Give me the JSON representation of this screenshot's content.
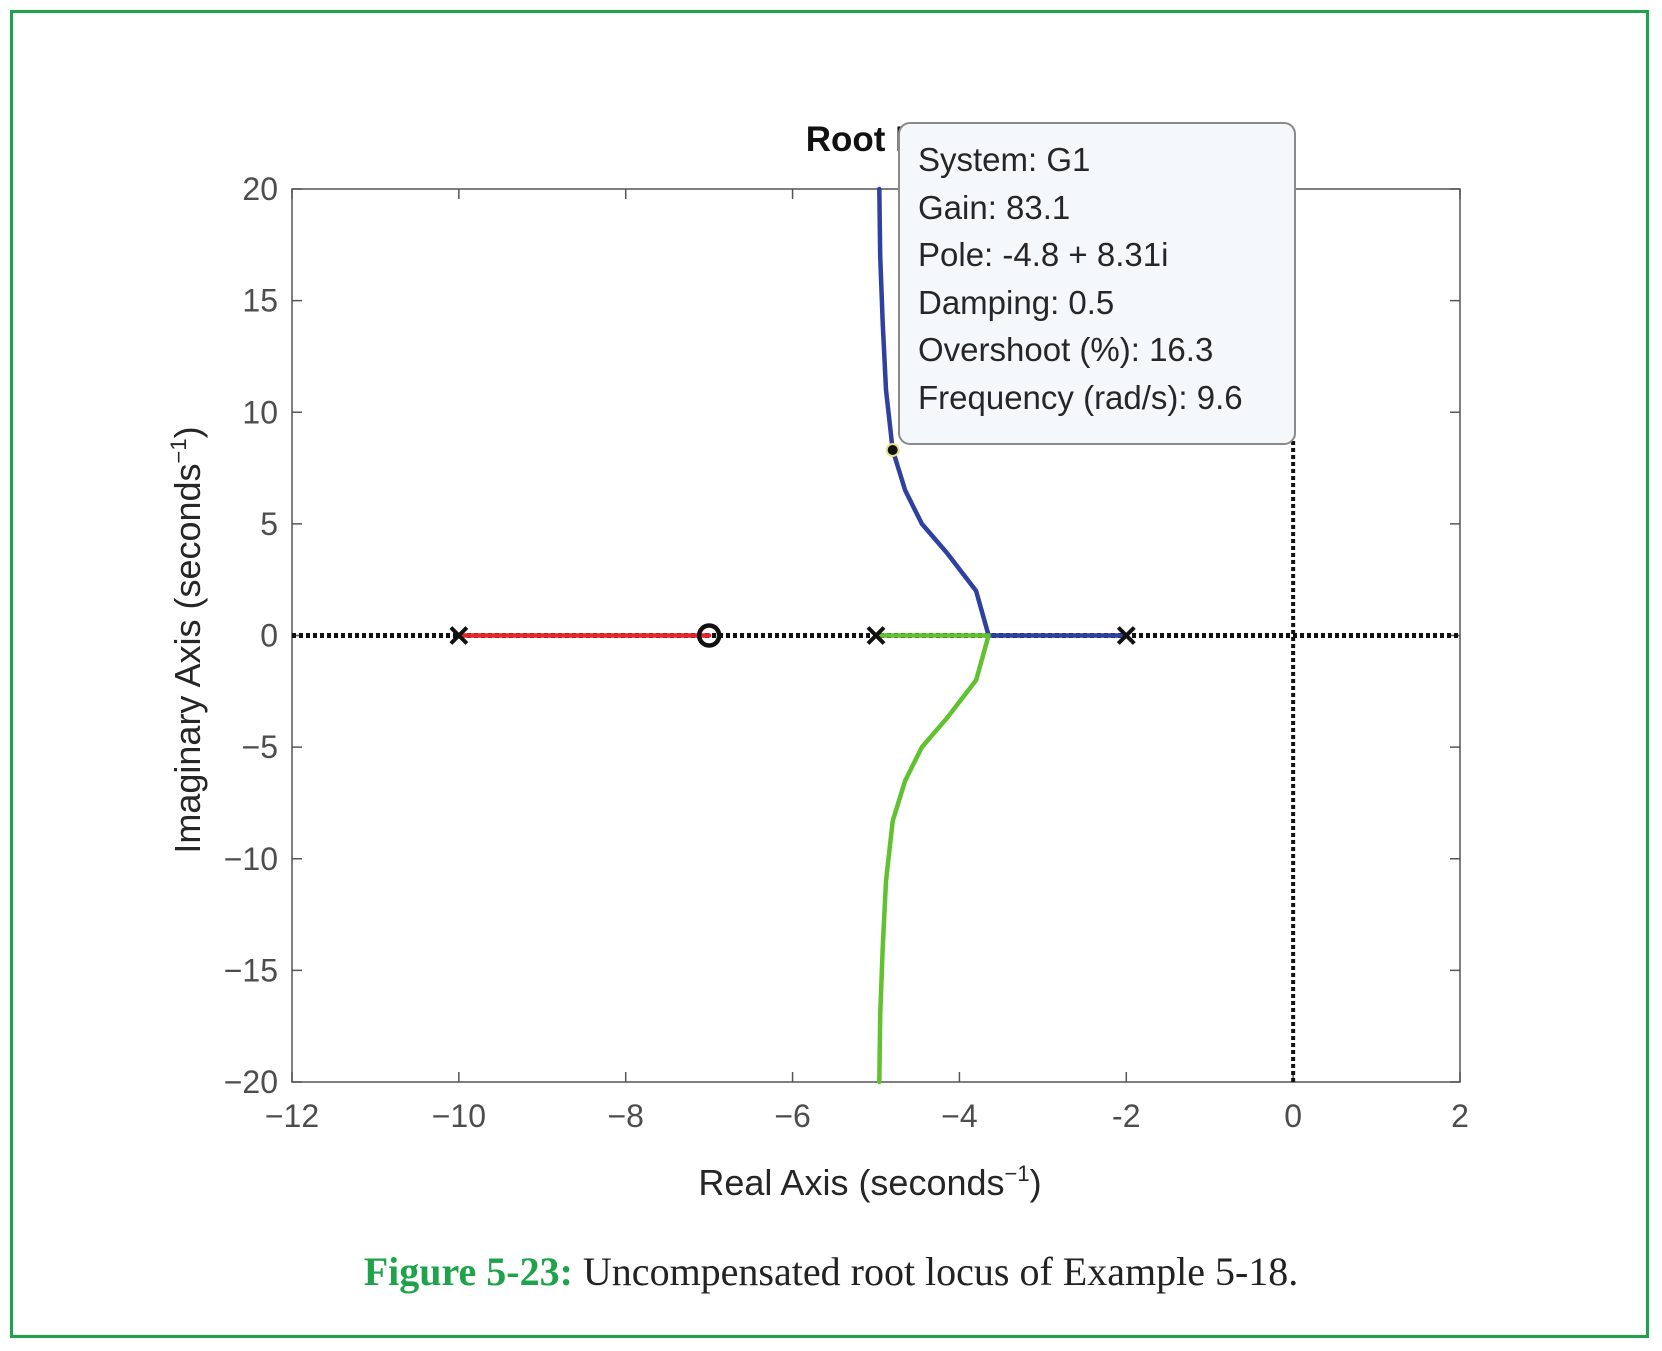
{
  "chart_data": {
    "type": "line",
    "title": "Root Locus",
    "xlabel": "Real Axis (seconds",
    "xlabel_sup": "−1",
    "xlabel_end": ")",
    "ylabel": "Imaginary Axis (seconds",
    "ylabel_sup": "−1",
    "ylabel_end": ")",
    "xlim": [
      -12,
      2
    ],
    "ylim": [
      -20,
      20
    ],
    "xticks": [
      -12,
      -10,
      -8,
      -6,
      -4,
      -2,
      0,
      2
    ],
    "xtick_labels": [
      "−12",
      "−10",
      "−8",
      "−6",
      "−4",
      "-2",
      "0",
      "2"
    ],
    "yticks": [
      20,
      15,
      10,
      5,
      0,
      -5,
      -10,
      -15,
      -20
    ],
    "ytick_labels": [
      "20",
      "15",
      "10",
      "5",
      "0",
      "−5",
      "−10",
      "−15",
      "−20"
    ],
    "grid": false,
    "poles": [
      [
        -10,
        0
      ],
      [
        -5,
        0
      ],
      [
        -2,
        0
      ]
    ],
    "zeros": [
      [
        -7,
        0
      ]
    ],
    "series": [
      {
        "color": "#e8262a",
        "points": [
          [
            -10,
            0
          ],
          [
            -7,
            0
          ]
        ]
      },
      {
        "color": "#2f41a0",
        "points": [
          [
            -2,
            0
          ],
          [
            -3.65,
            0
          ],
          [
            -3.8,
            2
          ],
          [
            -4.15,
            3.7
          ],
          [
            -4.45,
            5
          ],
          [
            -4.65,
            6.5
          ],
          [
            -4.8,
            8.31
          ],
          [
            -4.88,
            11
          ],
          [
            -4.92,
            14
          ],
          [
            -4.95,
            17
          ],
          [
            -4.96,
            20
          ]
        ]
      },
      {
        "color": "#5fc22e",
        "points": [
          [
            -5,
            0
          ],
          [
            -3.65,
            0
          ],
          [
            -3.8,
            -2
          ],
          [
            -4.15,
            -3.7
          ],
          [
            -4.45,
            -5
          ],
          [
            -4.65,
            -6.5
          ],
          [
            -4.8,
            -8.31
          ],
          [
            -4.88,
            -11
          ],
          [
            -4.92,
            -14
          ],
          [
            -4.95,
            -17
          ],
          [
            -4.96,
            -20
          ]
        ]
      }
    ],
    "selected_point": {
      "x": -4.8,
      "y": 8.31
    },
    "dotted_line_color": "#111111"
  },
  "tooltip": {
    "system": "System: G1",
    "gain": "Gain: 83.1",
    "pole": "Pole: -4.8 + 8.31i",
    "damping": "Damping: 0.5",
    "overshoot": "Overshoot (%): 16.3",
    "frequency": "Frequency (rad/s): 9.6"
  },
  "caption": {
    "label": "Figure 5-23:",
    "text": " Uncompensated root locus of Example 5-18.",
    "label_color": "#1fa34a"
  }
}
